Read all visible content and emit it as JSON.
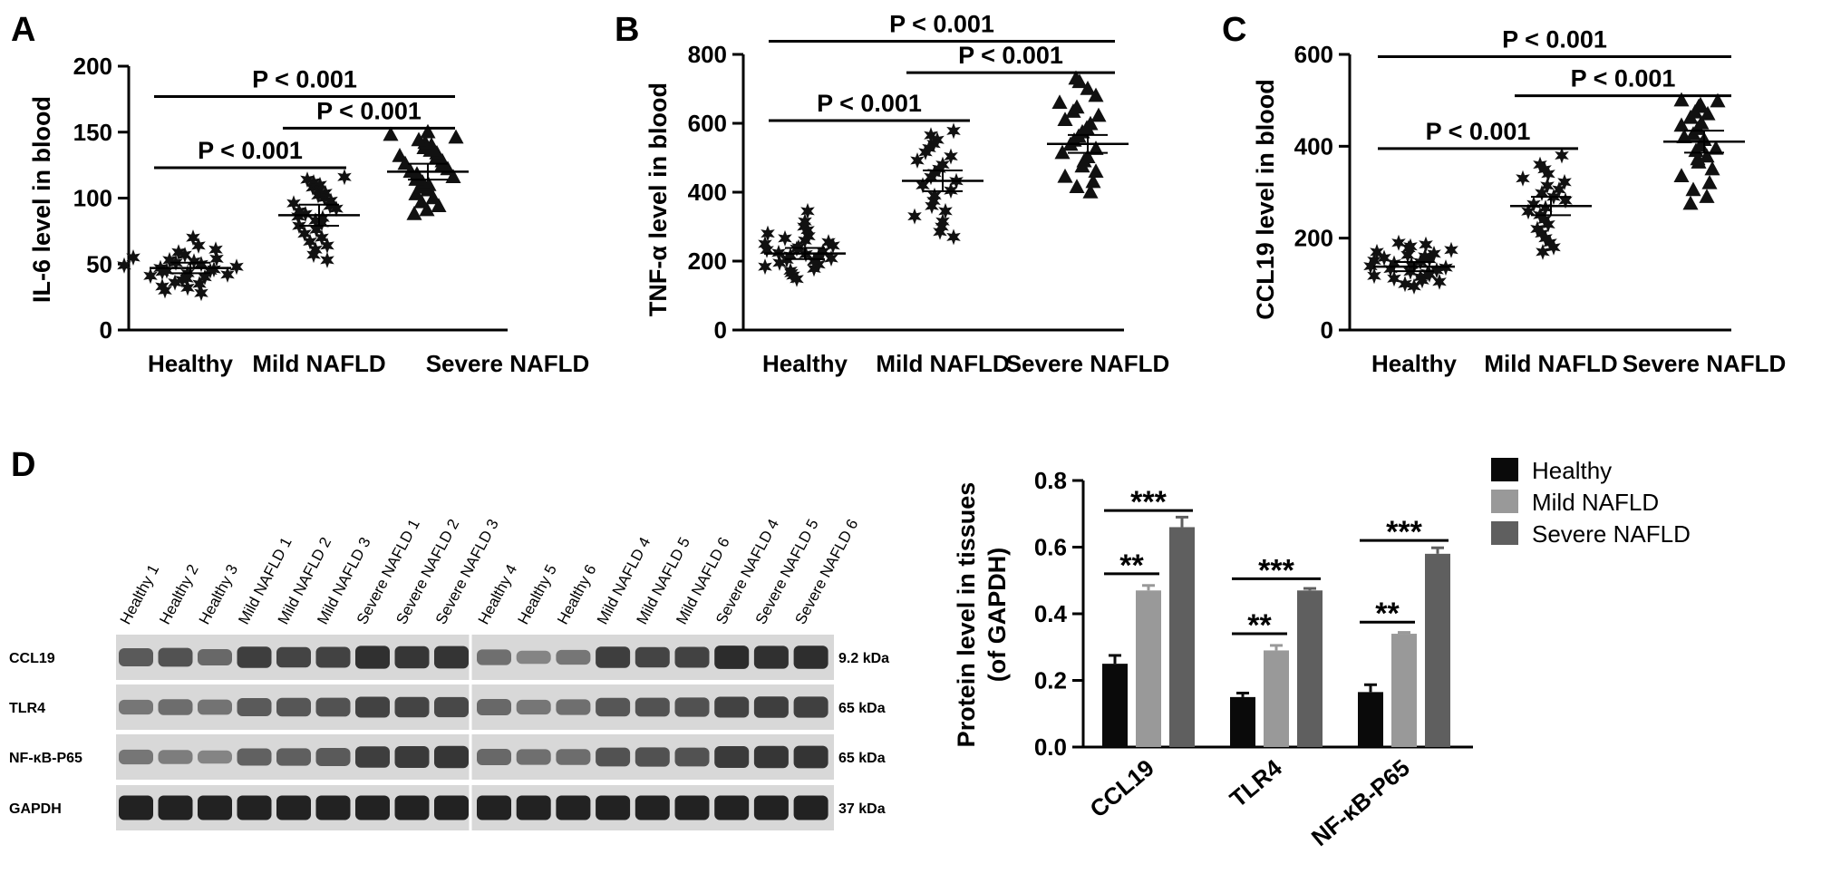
{
  "colors": {
    "healthy": "#0a0a0a",
    "mild": "#999999",
    "severe": "#5f5f5f",
    "blot_bg": "#d8d8d8",
    "band": "#1a1a1a"
  },
  "panel_letters": [
    "A",
    "B",
    "C",
    "D"
  ],
  "chart_data": [
    {
      "panel": "A",
      "type": "scatter",
      "ylabel": "IL-6 level in blood",
      "categories": [
        "Healthy",
        "Mild NAFLD",
        "Severe NAFLD"
      ],
      "yticks": [
        "0",
        "50",
        "100",
        "150",
        "200"
      ],
      "ylim": [
        0,
        200
      ],
      "markers": [
        "star",
        "star",
        "triangle"
      ],
      "means": [
        47,
        87,
        120
      ],
      "sems": [
        2,
        4,
        3
      ],
      "groups": [
        [
          28,
          30,
          32,
          33,
          35,
          36,
          38,
          39,
          40,
          41,
          42,
          43,
          44,
          45,
          45,
          46,
          47,
          48,
          49,
          50,
          51,
          52,
          53,
          54,
          55,
          57,
          59,
          61,
          64,
          70
        ],
        [
          53,
          57,
          61,
          64,
          67,
          70,
          73,
          76,
          79,
          81,
          83,
          85,
          86,
          88,
          90,
          92,
          94,
          96,
          98,
          100,
          102,
          104,
          106,
          108,
          110,
          112,
          114,
          116
        ],
        [
          88,
          91,
          94,
          97,
          100,
          103,
          106,
          108,
          110,
          112,
          114,
          116,
          118,
          120,
          122,
          124,
          126,
          128,
          130,
          132,
          134,
          136,
          138,
          140,
          142,
          144,
          146,
          148,
          150
        ]
      ],
      "comparisons": [
        {
          "from": 0,
          "to": 1,
          "label": "P < 0.001",
          "y": 123
        },
        {
          "from": 1,
          "to": 2,
          "label": "P < 0.001",
          "y": 153
        },
        {
          "from": 0,
          "to": 2,
          "label": "P < 0.001",
          "y": 177
        }
      ]
    },
    {
      "panel": "B",
      "type": "scatter",
      "ylabel": "TNF-α level in blood",
      "categories": [
        "Healthy",
        "Mild NAFLD",
        "Severe NAFLD"
      ],
      "yticks": [
        "0",
        "200",
        "400",
        "600",
        "800"
      ],
      "ylim": [
        0,
        800
      ],
      "markers": [
        "star",
        "star",
        "triangle"
      ],
      "means": [
        222,
        433,
        540
      ],
      "sems": [
        8,
        15,
        13
      ],
      "groups": [
        [
          148,
          158,
          165,
          172,
          178,
          184,
          190,
          195,
          200,
          204,
          208,
          212,
          216,
          220,
          224,
          228,
          232,
          236,
          240,
          245,
          250,
          255,
          260,
          266,
          272,
          280,
          290,
          300,
          315,
          345
        ],
        [
          270,
          285,
          300,
          315,
          330,
          345,
          360,
          375,
          390,
          405,
          420,
          432,
          444,
          456,
          468,
          480,
          492,
          504,
          516,
          528,
          540,
          552,
          565,
          578
        ],
        [
          400,
          415,
          430,
          445,
          460,
          475,
          490,
          502,
          514,
          526,
          538,
          550,
          562,
          574,
          586,
          598,
          610,
          622,
          634,
          646,
          660,
          680,
          700,
          720,
          730
        ]
      ],
      "comparisons": [
        {
          "from": 0,
          "to": 1,
          "label": "P < 0.001",
          "y": 608
        },
        {
          "from": 1,
          "to": 2,
          "label": "P < 0.001",
          "y": 747
        },
        {
          "from": 0,
          "to": 2,
          "label": "P < 0.001",
          "y": 838
        }
      ]
    },
    {
      "panel": "C",
      "type": "scatter",
      "ylabel": "CCL19 level in blood",
      "categories": [
        "Healthy",
        "Mild NAFLD",
        "Severe NAFLD"
      ],
      "yticks": [
        "0",
        "200",
        "400",
        "600"
      ],
      "ylim": [
        0,
        600
      ],
      "markers": [
        "star",
        "star",
        "triangle"
      ],
      "means": [
        138,
        270,
        410
      ],
      "sems": [
        5,
        10,
        12
      ],
      "groups": [
        [
          95,
          100,
          105,
          108,
          112,
          115,
          118,
          121,
          124,
          127,
          130,
          133,
          136,
          139,
          142,
          145,
          148,
          151,
          154,
          157,
          160,
          163,
          166,
          170,
          174,
          178,
          182,
          186,
          190
        ],
        [
          170,
          180,
          190,
          200,
          210,
          220,
          230,
          240,
          250,
          258,
          266,
          274,
          282,
          290,
          298,
          306,
          314,
          322,
          330,
          340,
          350,
          360,
          380
        ],
        [
          275,
          290,
          305,
          320,
          335,
          350,
          365,
          378,
          390,
          402,
          414,
          426,
          438,
          450,
          462,
          474,
          486,
          498,
          500,
          490,
          470,
          445,
          420,
          395,
          372
        ]
      ],
      "comparisons": [
        {
          "from": 0,
          "to": 1,
          "label": "P < 0.001",
          "y": 395
        },
        {
          "from": 1,
          "to": 2,
          "label": "P < 0.001",
          "y": 510
        },
        {
          "from": 0,
          "to": 2,
          "label": "P < 0.001",
          "y": 595
        }
      ]
    },
    {
      "panel": "D",
      "type": "bar",
      "ylabel_lines": [
        "Protein level in tissues",
        "(of GAPDH)"
      ],
      "categories": [
        "CCL19",
        "TLR4",
        "NF-κB-P65"
      ],
      "yticks": [
        "0.0",
        "0.2",
        "0.4",
        "0.6",
        "0.8"
      ],
      "ylim": [
        0,
        0.8
      ],
      "series": [
        {
          "name": "Healthy",
          "values": [
            0.25,
            0.15,
            0.165
          ],
          "errors": [
            0.025,
            0.012,
            0.022
          ]
        },
        {
          "name": "Mild NAFLD",
          "values": [
            0.47,
            0.29,
            0.34
          ],
          "errors": [
            0.015,
            0.015,
            0.004
          ]
        },
        {
          "name": "Severe NAFLD",
          "values": [
            0.66,
            0.47,
            0.58
          ],
          "errors": [
            0.03,
            0.006,
            0.018
          ]
        }
      ],
      "significance": [
        {
          "category": 0,
          "from": 0,
          "to": 1,
          "label": "**",
          "y": 0.52
        },
        {
          "category": 0,
          "from": 0,
          "to": 2,
          "label": "***",
          "y": 0.71
        },
        {
          "category": 1,
          "from": 0,
          "to": 1,
          "label": "**",
          "y": 0.34
        },
        {
          "category": 1,
          "from": 0,
          "to": 2,
          "label": "***",
          "y": 0.505
        },
        {
          "category": 2,
          "from": 0,
          "to": 1,
          "label": "**",
          "y": 0.375
        },
        {
          "category": 2,
          "from": 0,
          "to": 2,
          "label": "***",
          "y": 0.62
        }
      ],
      "legend_position": "top-right"
    }
  ],
  "blot": {
    "lanes": [
      "Healthy 1",
      "Healthy 2",
      "Healthy 3",
      "Mild NAFLD 1",
      "Mild NAFLD 2",
      "Mild NAFLD 3",
      "Severe NAFLD 1",
      "Severe NAFLD 2",
      "Severe NAFLD 3",
      "Healthy 4",
      "Healthy 5",
      "Healthy 6",
      "Mild NAFLD 4",
      "Mild NAFLD 5",
      "Mild NAFLD 6",
      "Severe NAFLD 4",
      "Severe NAFLD 5",
      "Severe NAFLD 6"
    ],
    "rows": [
      {
        "protein": "CCL19",
        "size": "9.2 kDa",
        "intensity": [
          0.55,
          0.6,
          0.45,
          0.75,
          0.7,
          0.72,
          0.85,
          0.8,
          0.82,
          0.4,
          0.25,
          0.35,
          0.75,
          0.7,
          0.72,
          0.88,
          0.85,
          0.86
        ]
      },
      {
        "protein": "TLR4",
        "size": "65 kDa",
        "intensity": [
          0.35,
          0.42,
          0.38,
          0.55,
          0.58,
          0.6,
          0.72,
          0.7,
          0.68,
          0.45,
          0.35,
          0.4,
          0.58,
          0.6,
          0.62,
          0.72,
          0.75,
          0.74
        ]
      },
      {
        "protein": "NF-κB-P65",
        "size": "65 kDa",
        "intensity": [
          0.35,
          0.3,
          0.25,
          0.5,
          0.52,
          0.55,
          0.75,
          0.78,
          0.8,
          0.45,
          0.4,
          0.42,
          0.6,
          0.62,
          0.6,
          0.78,
          0.8,
          0.82
        ]
      },
      {
        "protein": "GAPDH",
        "size": "37 kDa",
        "intensity": [
          0.95,
          0.95,
          0.95,
          0.95,
          0.95,
          0.95,
          0.95,
          0.95,
          0.95,
          0.95,
          0.95,
          0.95,
          0.95,
          0.95,
          0.95,
          0.95,
          0.95,
          0.95
        ]
      }
    ]
  }
}
